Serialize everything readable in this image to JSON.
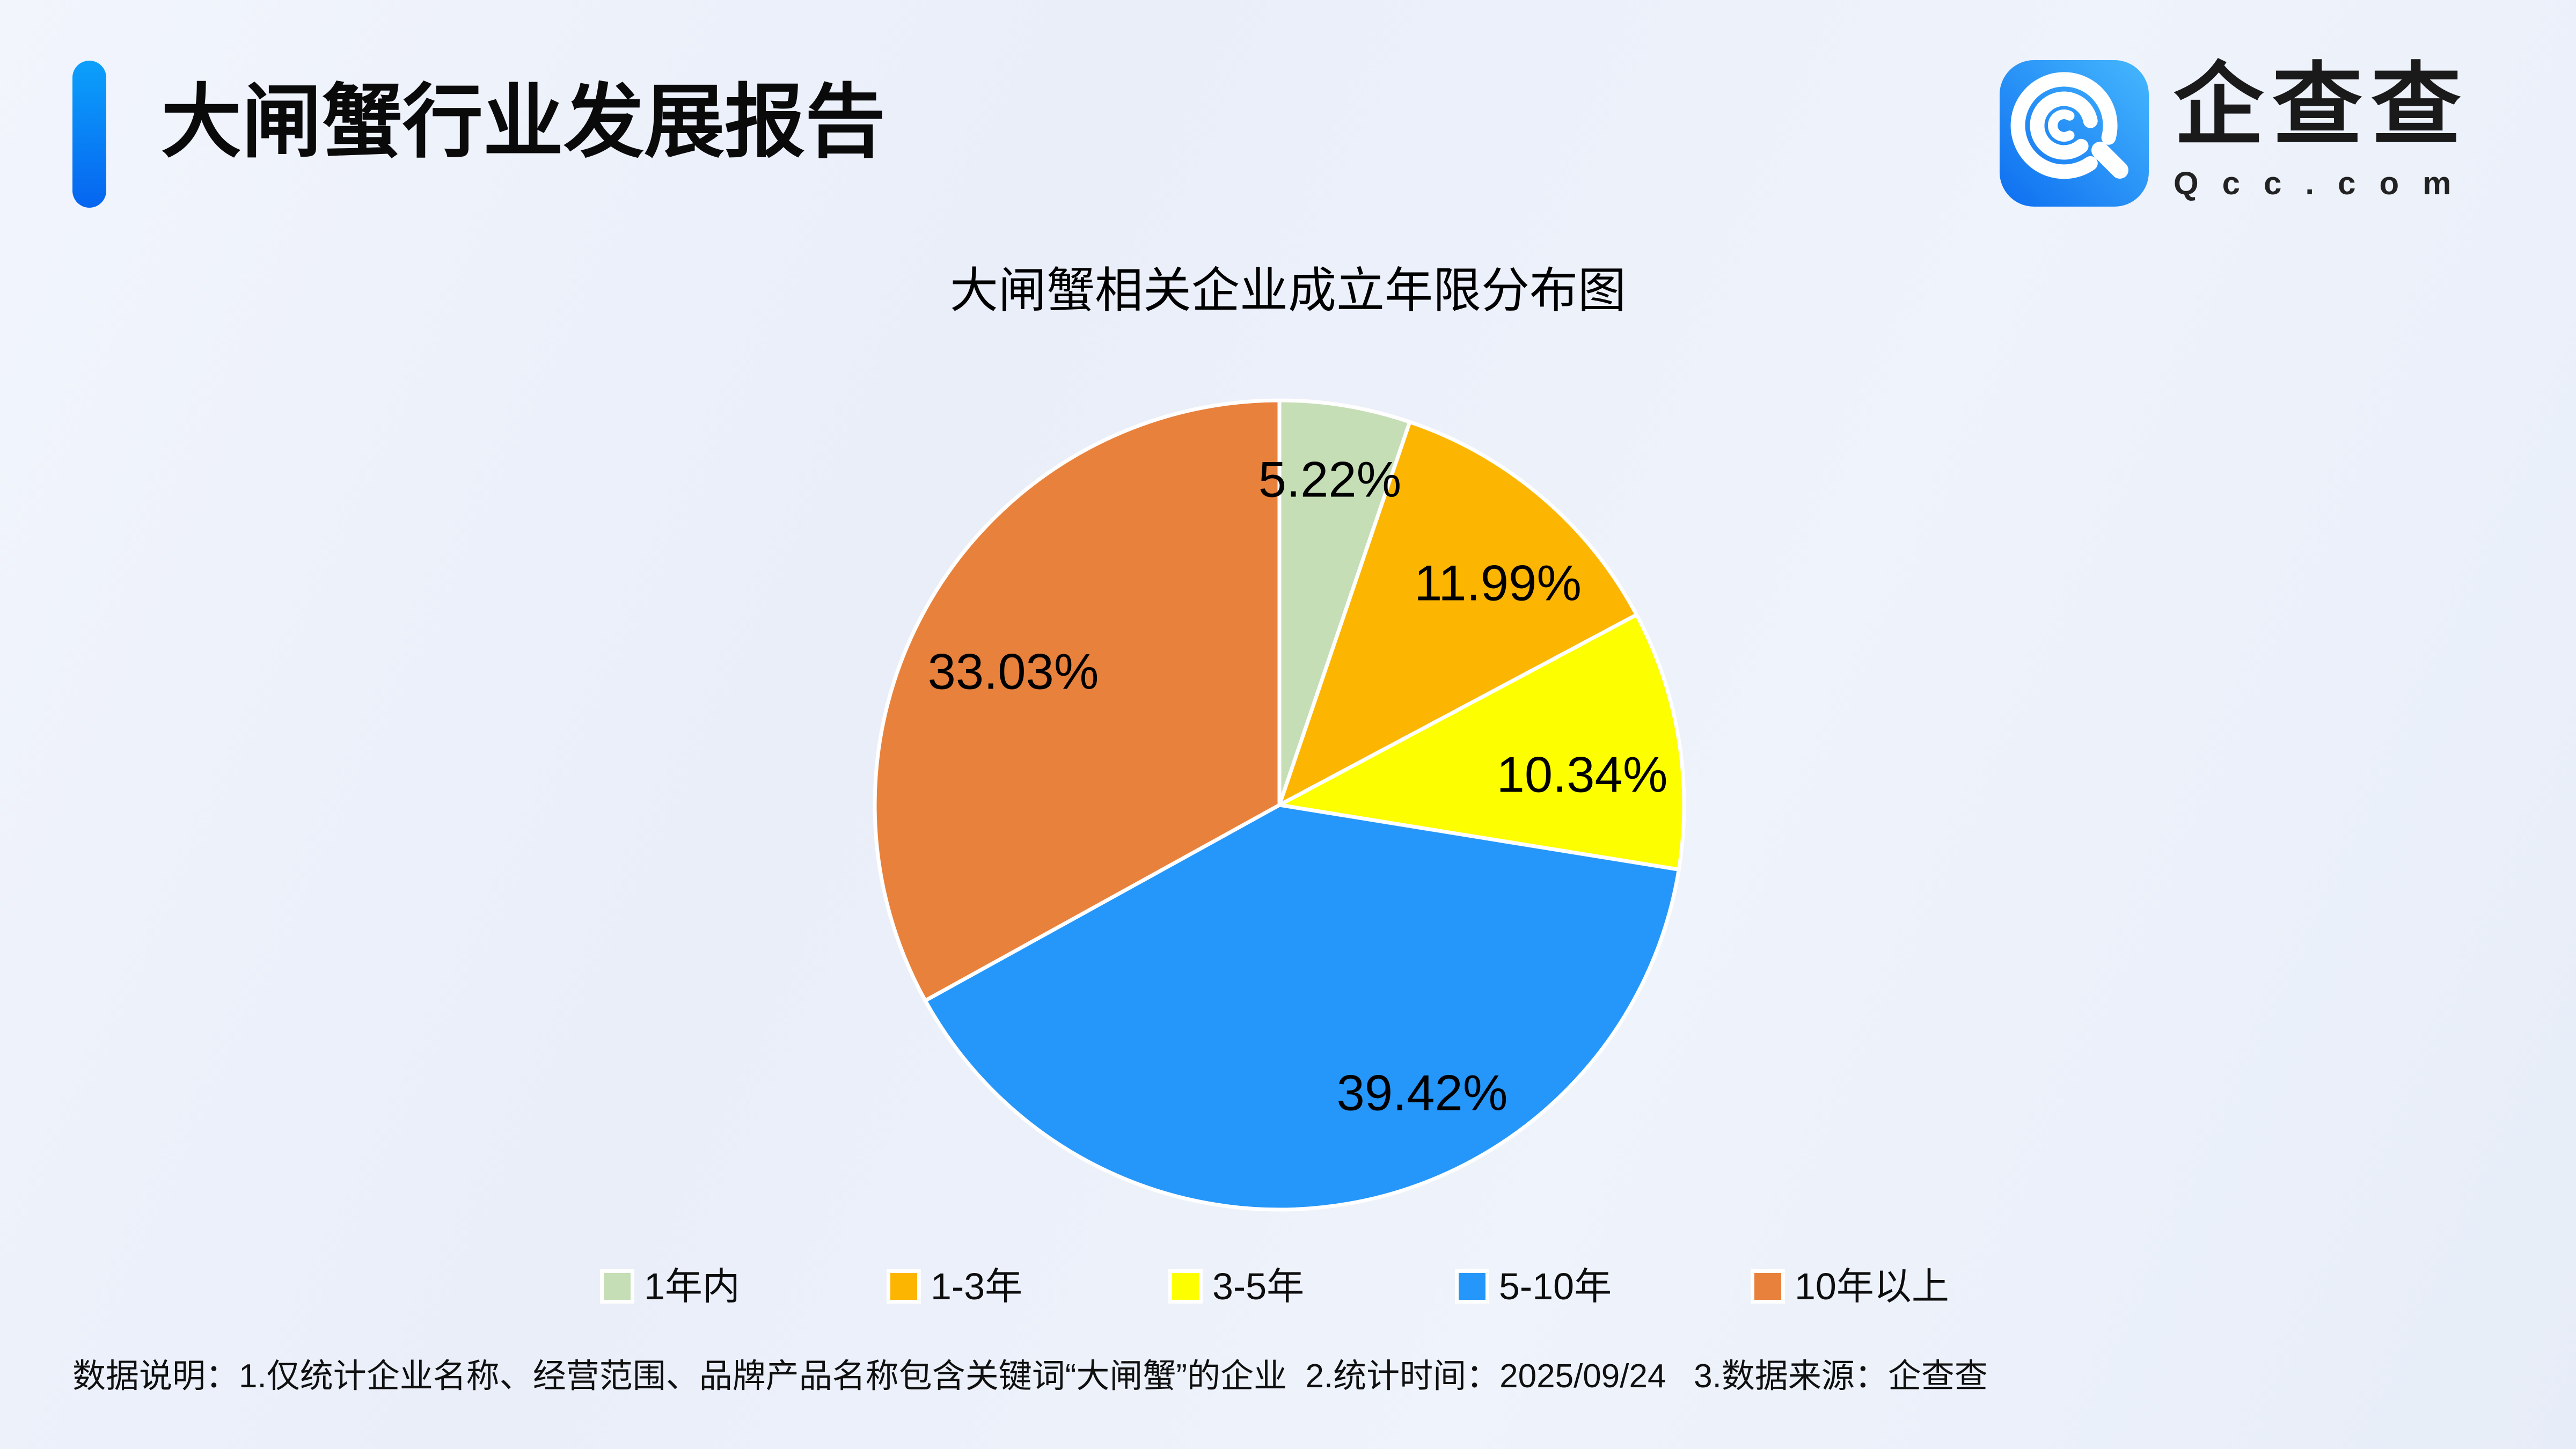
{
  "header": {
    "title": "大闸蟹行业发展报告",
    "logo": {
      "brand": "企查查",
      "domain": "Qcc.com"
    }
  },
  "chart_data": {
    "type": "pie",
    "title": "大闸蟹相关企业成立年限分布图",
    "categories": [
      "1年内",
      "1-3年",
      "3-5年",
      "5-10年",
      "10年以上"
    ],
    "values": [
      5.22,
      11.99,
      10.34,
      39.42,
      33.03
    ],
    "labels": [
      "5.22%",
      "11.99%",
      "10.34%",
      "39.42%",
      "33.03%"
    ],
    "colors": [
      "#c6deb6",
      "#fcb500",
      "#fdff00",
      "#2697fa",
      "#e8813c"
    ],
    "start_angle": "top",
    "direction": "clockwise",
    "slice_border_color": "#ffffff",
    "legend_position": "bottom",
    "label_positions": [
      [
        2478,
        893
      ],
      [
        2791,
        1086
      ],
      [
        2948,
        1443
      ],
      [
        2650,
        2036
      ],
      [
        1888,
        1251
      ]
    ]
  },
  "footer": {
    "note": "数据说明：1.仅统计企业名称、经营范围、品牌产品名称包含关键词“大闸蟹”的企业  2.统计时间：2025/09/24   3.数据来源：企查查"
  },
  "theme": {
    "accent_blue": "#0f7bf4",
    "logo_gradient_from": "#0d6ef0",
    "logo_gradient_to": "#46b8fe",
    "background": "#edf1fa"
  }
}
